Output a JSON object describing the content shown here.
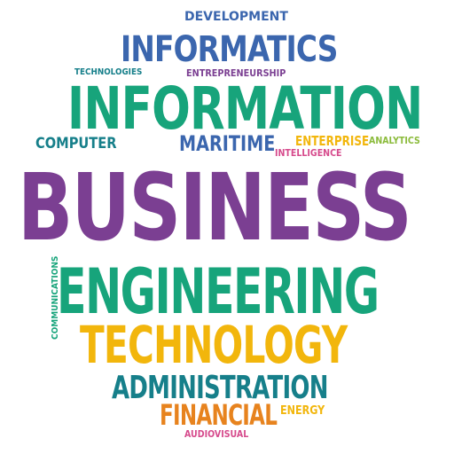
{
  "words": {
    "development": "DEVELOPMENT",
    "informatics": "INFORMATICS",
    "technologies": "TECHNOLOGIES",
    "entrepreneurship": "ENTREPRENEURSHIP",
    "information": "INFORMATION",
    "computer": "COMPUTER",
    "maritime": "MARITIME",
    "enterprise": "ENTERPRISE",
    "analytics": "ANALYTICS",
    "intelligence": "INTELLIGENCE",
    "business": "BUSINESS",
    "communications": "COMMUNICATIONS",
    "engineering": "ENGINEERING",
    "technology": "TECHNOLOGY",
    "administration": "ADMINISTRATION",
    "financial": "FINANCIAL",
    "energy": "ENERGY",
    "audiovisual": "AUDIOVISUAL"
  },
  "colors": {
    "purple": "#7b3f92",
    "green": "#17a47b",
    "blue": "#3b66ae",
    "teal": "#167f8a",
    "yellow": "#f2b60c",
    "orange": "#e7831e",
    "pink": "#d64a8c",
    "lime": "#8bbb3b",
    "background": "#ffffff"
  }
}
